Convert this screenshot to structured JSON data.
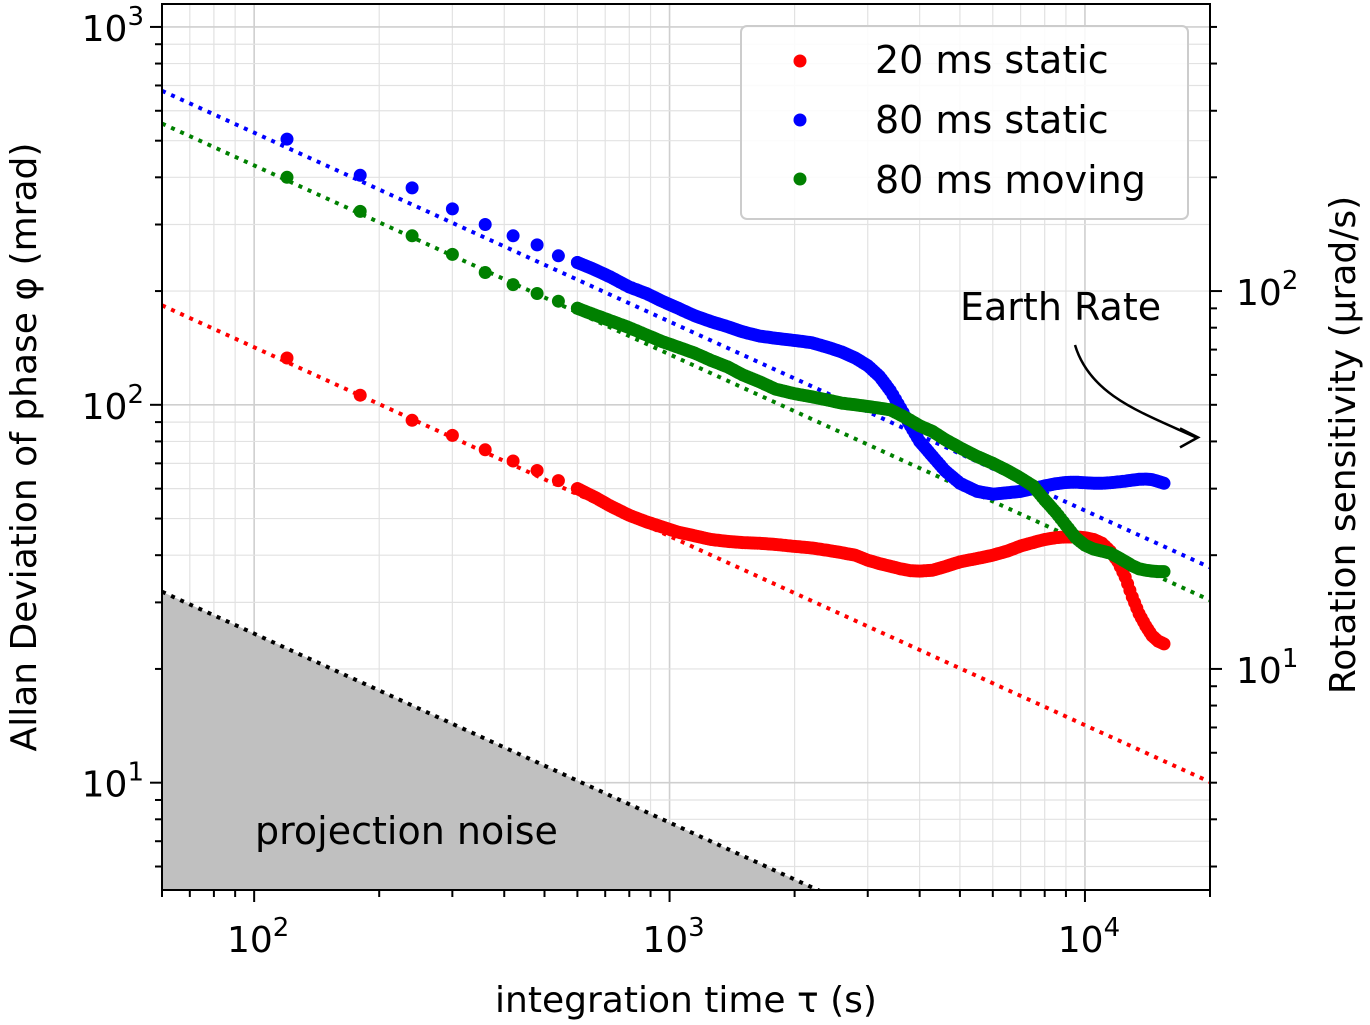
{
  "chart_data": {
    "type": "scatter",
    "x_scale": "log",
    "y_scale": "log",
    "xlim": [
      60,
      20000
    ],
    "ylim": [
      5.2,
      1150
    ],
    "y2lim": [
      2.6,
      575
    ],
    "xlabel": "integration time τ (s)",
    "ylabel": "Allan Deviation of phase φ (mrad)",
    "y2label": "Rotation sensitivity (μrad/s)",
    "grid": true,
    "legend_position": "top-right",
    "x_ticks": [
      {
        "value": 100,
        "base": "10",
        "exp": "2"
      },
      {
        "value": 1000,
        "base": "10",
        "exp": "3"
      },
      {
        "value": 10000,
        "base": "10",
        "exp": "4"
      }
    ],
    "y_ticks": [
      {
        "value": 10,
        "base": "10",
        "exp": "1"
      },
      {
        "value": 100,
        "base": "10",
        "exp": "2"
      },
      {
        "value": 1000,
        "base": "10",
        "exp": "3"
      }
    ],
    "y2_ticks": [
      {
        "value": 10,
        "base": "10",
        "exp": "1"
      },
      {
        "value": 100,
        "base": "10",
        "exp": "2"
      }
    ],
    "colors": {
      "red": "#ff0000",
      "blue": "#0000ff",
      "green": "#008000",
      "shade": "#c0c0c0"
    },
    "series": [
      {
        "name": "20 ms static",
        "color": "#ff0000",
        "fit": {
          "amplitude": 1420,
          "exponent": -0.5
        },
        "points": [
          [
            120,
            133
          ],
          [
            180,
            106
          ],
          [
            240,
            91
          ],
          [
            300,
            83
          ],
          [
            360,
            76
          ],
          [
            420,
            71
          ],
          [
            480,
            67
          ],
          [
            540,
            63
          ],
          [
            600,
            60
          ],
          [
            660,
            57
          ],
          [
            720,
            54
          ],
          [
            800,
            51
          ],
          [
            880,
            49
          ],
          [
            960,
            47.5
          ],
          [
            1050,
            46
          ],
          [
            1150,
            45
          ],
          [
            1260,
            44
          ],
          [
            1380,
            43.5
          ],
          [
            1500,
            43.2
          ],
          [
            1650,
            43
          ],
          [
            1800,
            42.7
          ],
          [
            2000,
            42.2
          ],
          [
            2200,
            41.8
          ],
          [
            2400,
            41.2
          ],
          [
            2600,
            40.6
          ],
          [
            2800,
            40
          ],
          [
            3000,
            38.8
          ],
          [
            3200,
            38
          ],
          [
            3400,
            37.4
          ],
          [
            3600,
            36.8
          ],
          [
            3800,
            36.4
          ],
          [
            4000,
            36.3
          ],
          [
            4300,
            36.5
          ],
          [
            4600,
            37.3
          ],
          [
            5000,
            38.4
          ],
          [
            5500,
            39.2
          ],
          [
            6000,
            40
          ],
          [
            6500,
            41
          ],
          [
            7000,
            42.3
          ],
          [
            7500,
            43.2
          ],
          [
            8000,
            44
          ],
          [
            8500,
            44.5
          ],
          [
            9000,
            44.7
          ],
          [
            9500,
            44.7
          ],
          [
            10000,
            44.5
          ],
          [
            10500,
            44
          ],
          [
            11000,
            43
          ],
          [
            11500,
            41
          ],
          [
            12000,
            38.5
          ],
          [
            12500,
            35
          ],
          [
            13000,
            31
          ],
          [
            13500,
            28
          ],
          [
            14000,
            26
          ],
          [
            14500,
            24.5
          ],
          [
            15000,
            23.7
          ],
          [
            15500,
            23.3
          ]
        ]
      },
      {
        "name": "80 ms static",
        "color": "#0000ff",
        "fit": {
          "amplitude": 5250,
          "exponent": -0.5
        },
        "points": [
          [
            120,
            505
          ],
          [
            180,
            405
          ],
          [
            240,
            375
          ],
          [
            300,
            330
          ],
          [
            360,
            300
          ],
          [
            420,
            280
          ],
          [
            480,
            265
          ],
          [
            540,
            248
          ],
          [
            600,
            238
          ],
          [
            660,
            228
          ],
          [
            720,
            218
          ],
          [
            800,
            205
          ],
          [
            880,
            197
          ],
          [
            960,
            188
          ],
          [
            1050,
            180
          ],
          [
            1150,
            172
          ],
          [
            1260,
            166
          ],
          [
            1380,
            161
          ],
          [
            1500,
            156
          ],
          [
            1650,
            152
          ],
          [
            1800,
            150
          ],
          [
            2000,
            148
          ],
          [
            2200,
            146
          ],
          [
            2400,
            142
          ],
          [
            2600,
            138
          ],
          [
            2800,
            133
          ],
          [
            3000,
            127
          ],
          [
            3200,
            119
          ],
          [
            3400,
            109
          ],
          [
            3600,
            98
          ],
          [
            3800,
            88
          ],
          [
            4000,
            80
          ],
          [
            4300,
            73
          ],
          [
            4600,
            67
          ],
          [
            5000,
            62
          ],
          [
            5500,
            59
          ],
          [
            6000,
            58
          ],
          [
            6500,
            58.5
          ],
          [
            7000,
            59
          ],
          [
            7500,
            60
          ],
          [
            8000,
            61
          ],
          [
            8500,
            61.8
          ],
          [
            9000,
            62.3
          ],
          [
            9500,
            62.4
          ],
          [
            10000,
            62.2
          ],
          [
            10500,
            62
          ],
          [
            11000,
            62
          ],
          [
            11500,
            62.2
          ],
          [
            12000,
            62.5
          ],
          [
            12500,
            62.8
          ],
          [
            13000,
            63.2
          ],
          [
            13500,
            63.5
          ],
          [
            14000,
            63.6
          ],
          [
            14500,
            63.4
          ],
          [
            15000,
            62.7
          ],
          [
            15500,
            62
          ]
        ]
      },
      {
        "name": "80 ms moving",
        "color": "#008000",
        "fit": {
          "amplitude": 4300,
          "exponent": -0.5
        },
        "points": [
          [
            120,
            400
          ],
          [
            180,
            325
          ],
          [
            240,
            280
          ],
          [
            300,
            250
          ],
          [
            360,
            224
          ],
          [
            420,
            208
          ],
          [
            480,
            197
          ],
          [
            540,
            188
          ],
          [
            600,
            180
          ],
          [
            660,
            173
          ],
          [
            720,
            167
          ],
          [
            800,
            160
          ],
          [
            880,
            153
          ],
          [
            960,
            147
          ],
          [
            1050,
            142
          ],
          [
            1150,
            137
          ],
          [
            1260,
            131
          ],
          [
            1380,
            126
          ],
          [
            1500,
            120
          ],
          [
            1650,
            115
          ],
          [
            1800,
            110
          ],
          [
            2000,
            107
          ],
          [
            2200,
            105
          ],
          [
            2400,
            103
          ],
          [
            2600,
            101
          ],
          [
            2800,
            100
          ],
          [
            3000,
            99
          ],
          [
            3200,
            98
          ],
          [
            3400,
            97
          ],
          [
            3600,
            94
          ],
          [
            3800,
            91
          ],
          [
            4000,
            88
          ],
          [
            4300,
            85
          ],
          [
            4600,
            81
          ],
          [
            5000,
            77
          ],
          [
            5500,
            73
          ],
          [
            6000,
            70
          ],
          [
            6500,
            67
          ],
          [
            7000,
            64
          ],
          [
            7500,
            61
          ],
          [
            8000,
            56
          ],
          [
            8500,
            52
          ],
          [
            9000,
            48
          ],
          [
            9500,
            44.5
          ],
          [
            10000,
            42.5
          ],
          [
            10500,
            41.5
          ],
          [
            11000,
            41
          ],
          [
            11500,
            40.5
          ],
          [
            12000,
            39.5
          ],
          [
            12500,
            38.5
          ],
          [
            13000,
            37.5
          ],
          [
            13500,
            36.8
          ],
          [
            14000,
            36.5
          ],
          [
            14500,
            36.3
          ],
          [
            15000,
            36.2
          ],
          [
            15500,
            36.2
          ]
        ]
      }
    ],
    "projection_noise": {
      "label": "projection noise",
      "fit": {
        "amplitude": 248,
        "exponent": -0.5
      }
    },
    "annotation": {
      "text": "Earth Rate",
      "arrow_target_y2": 41
    }
  }
}
